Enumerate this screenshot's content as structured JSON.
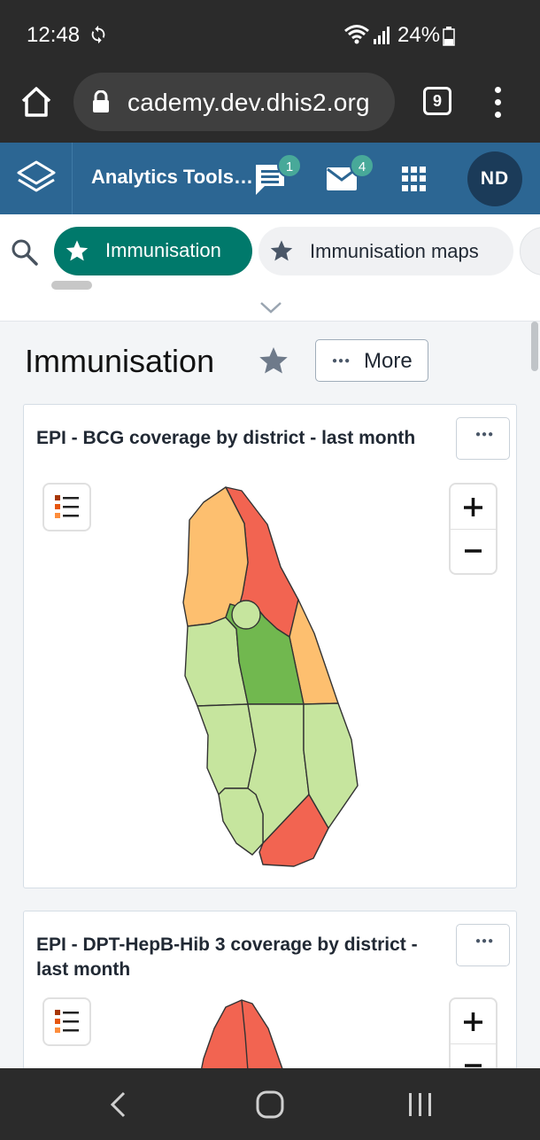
{
  "status_bar": {
    "time": "12:48",
    "battery": "24%",
    "icons": [
      "sync-icon",
      "wifi-icon",
      "signal-icon",
      "battery-icon"
    ]
  },
  "browser": {
    "url": "cademy.dev.dhis2.org",
    "tab_count": "9",
    "icons": [
      "home-icon",
      "lock-icon",
      "tabs-icon",
      "more-vert-icon"
    ]
  },
  "header": {
    "app_title": "Analytics Tools…",
    "messages_badge": "1",
    "mail_badge": "4",
    "avatar_initials": "ND",
    "colors": {
      "header_bg": "#2c6693",
      "badge": "#48a999",
      "avatar_bg": "#1b3b59"
    }
  },
  "dashboard_bar": {
    "chips": [
      {
        "label": "Immunisation",
        "selected": true,
        "starred": true
      },
      {
        "label": "Immunisation maps",
        "selected": false,
        "starred": true
      }
    ],
    "colors": {
      "selected_chip": "#00796b"
    }
  },
  "dashboard": {
    "title": "Immunisation",
    "more_label": "More"
  },
  "items": [
    {
      "title": "EPI - BCG coverage by district - last month",
      "map_colors": {
        "red": "#f26451",
        "orange": "#fdbf6f",
        "light_green": "#c6e59e",
        "dark_green": "#71b84f"
      }
    },
    {
      "title": "EPI - DPT-HepB-Hib 3 coverage by district - last month"
    }
  ],
  "nav_bar": {
    "icons": [
      "back-icon",
      "home-circle-icon",
      "recents-icon"
    ]
  }
}
